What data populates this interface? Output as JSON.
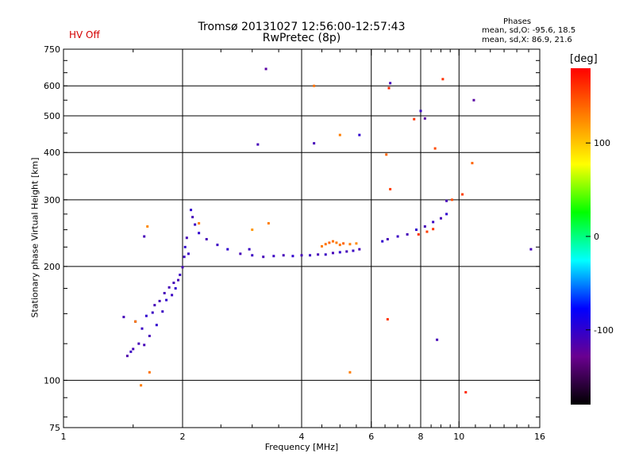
{
  "header": {
    "title_line1": "Tromsø 20131027 12:56:00-12:57:43",
    "title_line2": "RwPretec (8p)",
    "hv_status": "HV Off",
    "phases_heading": "Phases",
    "phases_o": "mean, sd,O: -95.6, 18.5",
    "phases_x": "mean, sd,X:  86.9, 21.6"
  },
  "colorbar": {
    "unit": "[deg]",
    "range": [
      -180,
      180
    ],
    "ticks": [
      100,
      0,
      -100
    ],
    "colors": [
      "#000000",
      "#6a0090",
      "#0000ff",
      "#00ffff",
      "#00ff00",
      "#ffff00",
      "#ff8000",
      "#ff0000"
    ]
  },
  "chart_data": {
    "type": "scatter",
    "xlabel": "Frequency [MHz]",
    "ylabel": "Stationary phase Virtual Height [km]",
    "x_scale": "log",
    "y_scale": "log",
    "xlim": [
      1,
      16
    ],
    "ylim": [
      75,
      750
    ],
    "x_ticks": [
      1,
      2,
      4,
      6,
      8,
      10,
      16
    ],
    "x_tick_labels": [
      "1",
      "2",
      "4",
      "6",
      "8",
      "10",
      "16"
    ],
    "y_ticks": [
      75,
      100,
      200,
      300,
      400,
      500,
      600,
      750
    ],
    "y_tick_labels": [
      "75",
      "100",
      "200",
      "300",
      "400",
      "500",
      "600",
      "750"
    ],
    "grid": true,
    "color_encoding": "phase_deg",
    "series": [
      {
        "points": [
          [
            1.42,
            147,
            -110
          ],
          [
            1.45,
            116,
            -115
          ],
          [
            1.48,
            119,
            -105
          ],
          [
            1.5,
            121,
            -110
          ],
          [
            1.52,
            143,
            -100
          ],
          [
            1.55,
            125,
            -110
          ],
          [
            1.58,
            137,
            -105
          ],
          [
            1.6,
            124,
            -110
          ],
          [
            1.62,
            148,
            -100
          ],
          [
            1.65,
            131,
            -110
          ],
          [
            1.68,
            151,
            -105
          ],
          [
            1.7,
            158,
            -110
          ],
          [
            1.72,
            140,
            -100
          ],
          [
            1.75,
            162,
            -110
          ],
          [
            1.78,
            152,
            -105
          ],
          [
            1.8,
            170,
            -110
          ],
          [
            1.82,
            163,
            -100
          ],
          [
            1.85,
            176,
            -110
          ],
          [
            1.88,
            168,
            -105
          ],
          [
            1.9,
            181,
            -110
          ],
          [
            1.92,
            175,
            -100
          ],
          [
            1.95,
            184,
            -110
          ],
          [
            1.97,
            190,
            -105
          ],
          [
            2.0,
            199,
            -110
          ],
          [
            2.02,
            212,
            -105
          ],
          [
            2.03,
            225,
            -100
          ],
          [
            2.05,
            238,
            -110
          ],
          [
            2.07,
            216,
            -105
          ],
          [
            2.1,
            282,
            -100
          ],
          [
            2.12,
            270,
            -110
          ],
          [
            2.15,
            258,
            -105
          ],
          [
            2.2,
            245,
            -100
          ],
          [
            2.3,
            236,
            -110
          ],
          [
            2.45,
            228,
            -105
          ],
          [
            2.6,
            222,
            -100
          ],
          [
            2.8,
            216,
            -110
          ],
          [
            3.0,
            214,
            -105
          ],
          [
            3.2,
            212,
            -110
          ],
          [
            3.4,
            213,
            -105
          ],
          [
            3.6,
            214,
            -110
          ],
          [
            3.8,
            213,
            -100
          ],
          [
            4.0,
            214,
            -110
          ],
          [
            4.2,
            214,
            -105
          ],
          [
            4.4,
            215,
            -110
          ],
          [
            4.6,
            215,
            -105
          ],
          [
            4.8,
            217,
            -110
          ],
          [
            5.0,
            218,
            -100
          ],
          [
            5.2,
            219,
            -110
          ],
          [
            5.4,
            220,
            -105
          ],
          [
            5.6,
            222,
            -110
          ],
          [
            6.4,
            233,
            -100
          ],
          [
            6.6,
            236,
            -110
          ],
          [
            7.0,
            240,
            -105
          ],
          [
            7.4,
            243,
            -110
          ],
          [
            7.8,
            250,
            -100
          ],
          [
            8.2,
            255,
            -110
          ],
          [
            8.6,
            262,
            -105
          ],
          [
            9.0,
            268,
            -110
          ],
          [
            9.3,
            275,
            -100
          ],
          [
            2.95,
            222,
            -105
          ],
          [
            3.1,
            420,
            -110
          ],
          [
            3.25,
            665,
            -120
          ],
          [
            4.3,
            423,
            -110
          ],
          [
            5.6,
            445,
            -100
          ],
          [
            6.7,
            610,
            -110
          ],
          [
            8.0,
            515,
            -105
          ],
          [
            8.2,
            492,
            -120
          ],
          [
            9.3,
            298,
            -110
          ],
          [
            10.9,
            550,
            -120
          ],
          [
            15.2,
            222,
            -110
          ],
          [
            1.6,
            240,
            -110
          ],
          [
            8.8,
            128,
            -110
          ]
        ]
      },
      {
        "points": [
          [
            4.5,
            226,
            130
          ],
          [
            4.6,
            229,
            135
          ],
          [
            4.7,
            231,
            140
          ],
          [
            4.8,
            233,
            135
          ],
          [
            4.9,
            231,
            130
          ],
          [
            5.0,
            228,
            135
          ],
          [
            5.1,
            230,
            140
          ],
          [
            5.3,
            229,
            130
          ],
          [
            5.5,
            230,
            125
          ],
          [
            1.57,
            97,
            130
          ],
          [
            1.65,
            105,
            135
          ],
          [
            1.52,
            143,
            130
          ],
          [
            2.2,
            260,
            130
          ],
          [
            3.3,
            260,
            130
          ],
          [
            3.0,
            250,
            120
          ],
          [
            5.0,
            445,
            130
          ],
          [
            4.3,
            600,
            135
          ],
          [
            6.55,
            395,
            140
          ],
          [
            6.7,
            320,
            155
          ],
          [
            7.7,
            490,
            160
          ],
          [
            8.7,
            410,
            150
          ],
          [
            10.2,
            310,
            155
          ],
          [
            10.8,
            375,
            140
          ],
          [
            1.63,
            255,
            125
          ],
          [
            6.6,
            145,
            160
          ],
          [
            5.3,
            105,
            130
          ],
          [
            9.6,
            300,
            150
          ],
          [
            10.4,
            93,
            165
          ],
          [
            7.9,
            243,
            160
          ],
          [
            8.3,
            247,
            155
          ],
          [
            8.6,
            251,
            160
          ],
          [
            6.65,
            592,
            165
          ],
          [
            9.1,
            625,
            160
          ]
        ]
      }
    ]
  }
}
